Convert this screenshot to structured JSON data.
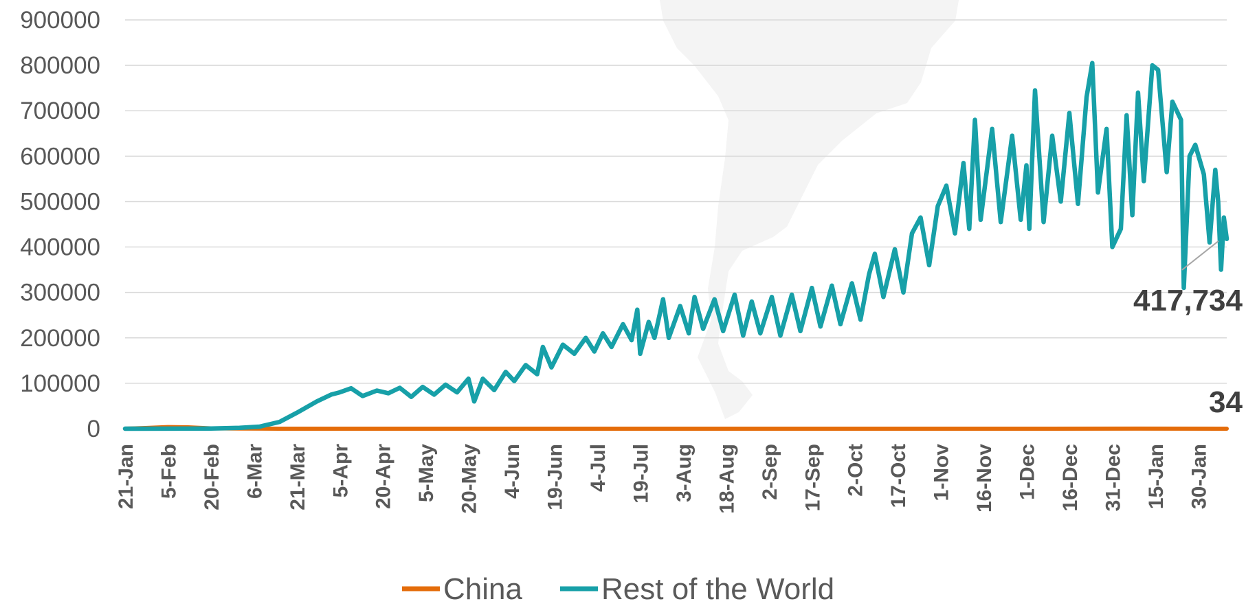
{
  "chart_data": {
    "type": "line",
    "title": "",
    "xlabel": "",
    "ylabel": "",
    "ylim": [
      0,
      900000
    ],
    "y_ticks": [
      "900000",
      "800000",
      "700000",
      "600000",
      "500000",
      "400000",
      "300000",
      "200000",
      "100000",
      "0"
    ],
    "x_tick_labels": [
      "21-Jan",
      "5-Feb",
      "20-Feb",
      "6-Mar",
      "21-Mar",
      "5-Apr",
      "20-Apr",
      "5-May",
      "20-May",
      "4-Jun",
      "19-Jun",
      "4-Jul",
      "19-Jul",
      "3-Aug",
      "18-Aug",
      "2-Sep",
      "17-Sep",
      "2-Oct",
      "17-Oct",
      "1-Nov",
      "16-Nov",
      "1-Dec",
      "16-Dec",
      "31-Dec",
      "15-Jan",
      "30-Jan"
    ],
    "x_range": [
      "2020-01-21",
      "2021-02-09"
    ],
    "grid": "horizontal",
    "legend_position": "bottom",
    "series": [
      {
        "name": "China",
        "color": "#E46C0A",
        "points": [
          [
            "2020-01-21",
            0
          ],
          [
            "2020-01-28",
            1500
          ],
          [
            "2020-02-05",
            3700
          ],
          [
            "2020-02-12",
            3000
          ],
          [
            "2020-02-20",
            800
          ],
          [
            "2020-03-01",
            300
          ],
          [
            "2020-03-15",
            30
          ],
          [
            "2020-06-01",
            10
          ],
          [
            "2020-09-01",
            15
          ],
          [
            "2020-12-01",
            20
          ],
          [
            "2021-01-10",
            120
          ],
          [
            "2021-02-09",
            34
          ]
        ],
        "last_label": "34"
      },
      {
        "name": "Rest of the World",
        "color": "#17A0A8",
        "points": [
          [
            "2020-01-21",
            0
          ],
          [
            "2020-02-20",
            400
          ],
          [
            "2020-03-01",
            2000
          ],
          [
            "2020-03-08",
            4500
          ],
          [
            "2020-03-15",
            15000
          ],
          [
            "2020-03-21",
            35000
          ],
          [
            "2020-03-28",
            60000
          ],
          [
            "2020-04-02",
            75000
          ],
          [
            "2020-04-05",
            80000
          ],
          [
            "2020-04-09",
            89000
          ],
          [
            "2020-04-13",
            72000
          ],
          [
            "2020-04-18",
            84000
          ],
          [
            "2020-04-22",
            78000
          ],
          [
            "2020-04-26",
            90000
          ],
          [
            "2020-04-30",
            70000
          ],
          [
            "2020-05-04",
            92000
          ],
          [
            "2020-05-08",
            75000
          ],
          [
            "2020-05-12",
            97000
          ],
          [
            "2020-05-16",
            80000
          ],
          [
            "2020-05-20",
            110000
          ],
          [
            "2020-05-22",
            60000
          ],
          [
            "2020-05-25",
            110000
          ],
          [
            "2020-05-29",
            85000
          ],
          [
            "2020-06-02",
            125000
          ],
          [
            "2020-06-05",
            105000
          ],
          [
            "2020-06-09",
            140000
          ],
          [
            "2020-06-13",
            120000
          ],
          [
            "2020-06-15",
            180000
          ],
          [
            "2020-06-18",
            135000
          ],
          [
            "2020-06-22",
            185000
          ],
          [
            "2020-06-26",
            165000
          ],
          [
            "2020-06-30",
            200000
          ],
          [
            "2020-07-03",
            170000
          ],
          [
            "2020-07-06",
            210000
          ],
          [
            "2020-07-09",
            180000
          ],
          [
            "2020-07-13",
            230000
          ],
          [
            "2020-07-16",
            195000
          ],
          [
            "2020-07-18",
            262000
          ],
          [
            "2020-07-19",
            165000
          ],
          [
            "2020-07-22",
            235000
          ],
          [
            "2020-07-24",
            200000
          ],
          [
            "2020-07-27",
            285000
          ],
          [
            "2020-07-29",
            200000
          ],
          [
            "2020-08-02",
            270000
          ],
          [
            "2020-08-05",
            210000
          ],
          [
            "2020-08-07",
            290000
          ],
          [
            "2020-08-10",
            220000
          ],
          [
            "2020-08-14",
            285000
          ],
          [
            "2020-08-17",
            215000
          ],
          [
            "2020-08-21",
            295000
          ],
          [
            "2020-08-24",
            205000
          ],
          [
            "2020-08-27",
            280000
          ],
          [
            "2020-08-30",
            210000
          ],
          [
            "2020-09-03",
            290000
          ],
          [
            "2020-09-06",
            205000
          ],
          [
            "2020-09-10",
            295000
          ],
          [
            "2020-09-13",
            215000
          ],
          [
            "2020-09-17",
            310000
          ],
          [
            "2020-09-20",
            225000
          ],
          [
            "2020-09-24",
            315000
          ],
          [
            "2020-09-27",
            230000
          ],
          [
            "2020-10-01",
            320000
          ],
          [
            "2020-10-04",
            240000
          ],
          [
            "2020-10-07",
            340000
          ],
          [
            "2020-10-09",
            385000
          ],
          [
            "2020-10-12",
            290000
          ],
          [
            "2020-10-16",
            395000
          ],
          [
            "2020-10-19",
            300000
          ],
          [
            "2020-10-22",
            430000
          ],
          [
            "2020-10-25",
            465000
          ],
          [
            "2020-10-28",
            360000
          ],
          [
            "2020-10-31",
            490000
          ],
          [
            "2020-11-03",
            535000
          ],
          [
            "2020-11-06",
            430000
          ],
          [
            "2020-11-09",
            585000
          ],
          [
            "2020-11-11",
            440000
          ],
          [
            "2020-11-13",
            680000
          ],
          [
            "2020-11-15",
            460000
          ],
          [
            "2020-11-19",
            660000
          ],
          [
            "2020-11-22",
            455000
          ],
          [
            "2020-11-26",
            645000
          ],
          [
            "2020-11-29",
            460000
          ],
          [
            "2020-12-01",
            580000
          ],
          [
            "2020-12-02",
            440000
          ],
          [
            "2020-12-04",
            745000
          ],
          [
            "2020-12-07",
            455000
          ],
          [
            "2020-12-10",
            645000
          ],
          [
            "2020-12-13",
            500000
          ],
          [
            "2020-12-16",
            695000
          ],
          [
            "2020-12-19",
            495000
          ],
          [
            "2020-12-22",
            730000
          ],
          [
            "2020-12-24",
            805000
          ],
          [
            "2020-12-26",
            520000
          ],
          [
            "2020-12-29",
            660000
          ],
          [
            "2020-12-31",
            400000
          ],
          [
            "2021-01-03",
            440000
          ],
          [
            "2021-01-05",
            690000
          ],
          [
            "2021-01-07",
            470000
          ],
          [
            "2021-01-09",
            740000
          ],
          [
            "2021-01-11",
            545000
          ],
          [
            "2021-01-14",
            800000
          ],
          [
            "2021-01-16",
            790000
          ],
          [
            "2021-01-19",
            565000
          ],
          [
            "2021-01-21",
            720000
          ],
          [
            "2021-01-24",
            680000
          ],
          [
            "2021-01-25",
            310000
          ],
          [
            "2021-01-27",
            600000
          ],
          [
            "2021-01-29",
            625000
          ],
          [
            "2021-02-01",
            560000
          ],
          [
            "2021-02-03",
            410000
          ],
          [
            "2021-02-05",
            570000
          ],
          [
            "2021-02-06",
            500000
          ],
          [
            "2021-02-07",
            350000
          ],
          [
            "2021-02-08",
            465000
          ],
          [
            "2021-02-09",
            417734
          ]
        ],
        "last_label": "417,734"
      }
    ]
  }
}
